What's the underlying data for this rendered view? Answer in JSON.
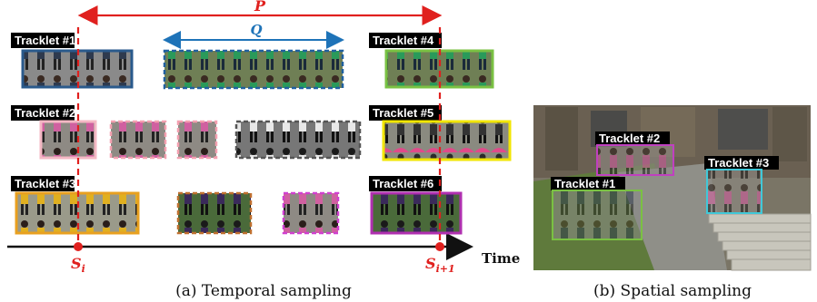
{
  "temporal": {
    "label_p": "P",
    "label_q": "Q",
    "label_si": "S",
    "label_si_sub": "i",
    "label_si1": "S",
    "label_si1_sub": "i+1",
    "time_label": "Time",
    "tracklets": [
      {
        "label": "Tracklet #1",
        "border": "#2a5a8c"
      },
      {
        "label": "Tracklet #2",
        "border": "#f4b8c4"
      },
      {
        "label": "Tracklet #3",
        "border": "#e8a020"
      },
      {
        "label": "Tracklet #4",
        "border": "#7ac143"
      },
      {
        "label": "Tracklet #5",
        "border": "#f2e600"
      },
      {
        "label": "Tracklet #6",
        "border": "#b030b0"
      }
    ],
    "caption": "(a) Temporal sampling"
  },
  "spatial": {
    "tracklets": [
      {
        "label": "Tracklet #1",
        "border": "#7ac143"
      },
      {
        "label": "Tracklet #2",
        "border": "#c040c0"
      },
      {
        "label": "Tracklet #3",
        "border": "#40c8d8"
      }
    ],
    "caption": "(b) Spatial sampling"
  },
  "colors": {
    "red": "#e0201e",
    "blue": "#1e73b8",
    "dashed_blue": "#2060a0",
    "brown_dashed": "#c07030",
    "pink_dashed": "#f4a0b0",
    "gray_dashed": "#555555",
    "magenta": "#d040d0"
  }
}
